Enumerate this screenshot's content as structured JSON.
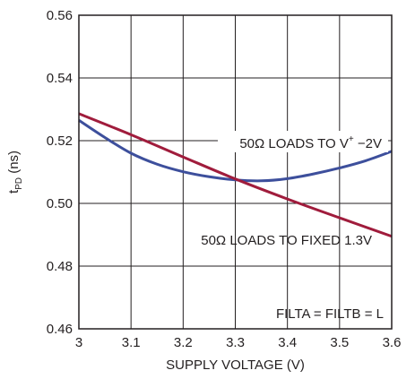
{
  "chart_data": {
    "type": "line",
    "xlabel": "SUPPLY VOLTAGE (V)",
    "ylabel": {
      "main": "t",
      "sub": "PD",
      "unit": " (ns)"
    },
    "xlim": [
      3.0,
      3.6
    ],
    "ylim": [
      0.46,
      0.56
    ],
    "x_ticks": [
      "3",
      "3.1",
      "3.2",
      "3.3",
      "3.4",
      "3.5",
      "3.6"
    ],
    "y_ticks": [
      "0.46",
      "0.48",
      "0.50",
      "0.52",
      "0.54",
      "0.56"
    ],
    "grid": true,
    "series": [
      {
        "color": "#3d4f9c",
        "x": [
          3.0,
          3.05,
          3.1,
          3.15,
          3.2,
          3.25,
          3.3,
          3.35,
          3.4,
          3.45,
          3.5,
          3.55,
          3.6
        ],
        "y": [
          0.5265,
          0.521,
          0.516,
          0.5125,
          0.5101,
          0.5085,
          0.5075,
          0.5072,
          0.5079,
          0.5094,
          0.5113,
          0.5136,
          0.5166
        ]
      },
      {
        "color": "#a01c3c",
        "x": [
          3.0,
          3.1,
          3.2,
          3.3,
          3.4,
          3.5,
          3.6
        ],
        "y": [
          0.5286,
          0.5219,
          0.5148,
          0.5078,
          0.5014,
          0.4954,
          0.4895
        ]
      }
    ],
    "annotations": {
      "loads_v_plus": {
        "pre": "50Ω LOADS TO V",
        "sup": "+",
        "post": " −2V"
      },
      "loads_fixed": "50Ω LOADS TO FIXED 1.3V",
      "filt": "FILTA = FILTB = L"
    }
  }
}
